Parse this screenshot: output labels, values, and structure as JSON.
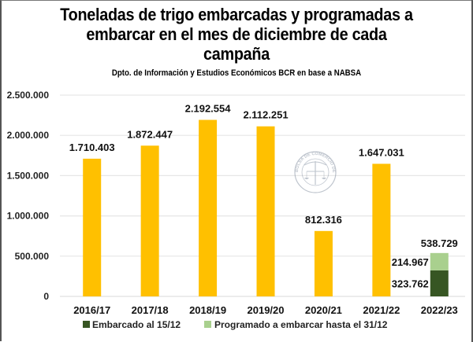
{
  "chart_data": {
    "type": "bar",
    "title_lines": [
      "Toneladas de trigo embarcadas y programadas a",
      "embarcar en el mes de diciembre de cada",
      "campaña"
    ],
    "subtitle": "Dpto. de Información y Estudios Económicos BCR en base a NABSA",
    "categories": [
      "2016/17",
      "2017/18",
      "2018/19",
      "2019/20",
      "2020/21",
      "2021/22",
      "2022/23"
    ],
    "values": [
      1710403,
      1872447,
      2192554,
      2112251,
      812316,
      1647031,
      null
    ],
    "value_labels": [
      "1.710.403",
      "1.872.447",
      "2.192.554",
      "2.112.251",
      "812.316",
      "1.647.031",
      "538.729"
    ],
    "stacked_last": {
      "category": "2022/23",
      "total": 538729,
      "total_label": "538.729",
      "series": [
        {
          "name": "Embarcado al 15/12",
          "value": 323762,
          "label": "323.762"
        },
        {
          "name": "Programado a embarcar hasta el 31/12",
          "value": 214967,
          "label": "214.967"
        }
      ]
    },
    "ylim": [
      0,
      2500000
    ],
    "yticks": [
      0,
      500000,
      1000000,
      1500000,
      2000000,
      2500000
    ],
    "ytick_labels": [
      "0",
      "500.000",
      "1.000.000",
      "1.500.000",
      "2.000.000",
      "2.500.000"
    ],
    "grid": true,
    "legend": [
      {
        "name": "Embarcado al 15/12",
        "color": "#375623"
      },
      {
        "name": "Programado a embarcar hasta el 31/12",
        "color": "#A9D08E"
      }
    ],
    "legend_position": "bottom",
    "colors": {
      "main": "#FFC000",
      "embarcado": "#375623",
      "programado": "#A9D08E",
      "grid": "#E6E6E6"
    },
    "watermark": "BOLSA DE COMERCIO DE ROSARIO"
  }
}
